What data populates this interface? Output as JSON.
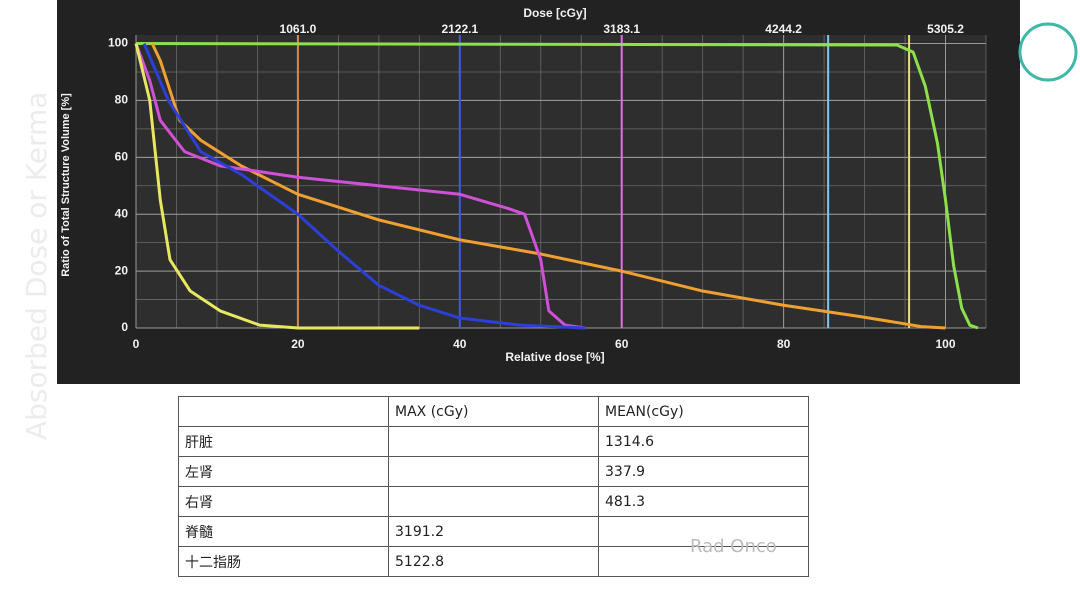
{
  "chart_data": {
    "type": "line",
    "title": "Dose [cGy]",
    "xlabel": "Relative dose [%]",
    "ylabel": "Ratio of Total Structure Volume [%]",
    "xlim": [
      0,
      105
    ],
    "ylim": [
      0,
      103
    ],
    "xticks": [
      0,
      20,
      40,
      60,
      80,
      100
    ],
    "yticks": [
      0,
      20,
      40,
      60,
      80,
      100
    ],
    "x2ticks": [
      {
        "value": 20,
        "label": "1061.0"
      },
      {
        "value": 40,
        "label": "2122.1"
      },
      {
        "value": 60,
        "label": "3183.1"
      },
      {
        "value": 80,
        "label": "4244.2"
      },
      {
        "value": 100,
        "label": "5305.2"
      }
    ],
    "grid": true,
    "reference_lines": [
      {
        "x": 20,
        "color": "#d98a4e"
      },
      {
        "x": 40,
        "color": "#3d5be0"
      },
      {
        "x": 60,
        "color": "#e070e8"
      },
      {
        "x": 85.5,
        "color": "#7ec8f0"
      },
      {
        "x": 95.5,
        "color": "#e8e070"
      }
    ],
    "series": [
      {
        "color": "#8ee04a",
        "x": [
          0,
          94,
          96,
          97.5,
          99,
          100,
          101,
          102,
          103,
          104
        ],
        "values": [
          100,
          99.5,
          97,
          85,
          65,
          45,
          22,
          7,
          1,
          0
        ]
      },
      {
        "color": "#f0a030",
        "x": [
          2,
          3,
          5.4,
          8,
          13,
          20,
          30,
          40,
          50,
          60,
          70,
          80,
          89.5,
          97,
          100
        ],
        "values": [
          100,
          94,
          73,
          66,
          57,
          47,
          38,
          31,
          26,
          20,
          13,
          8,
          4,
          0.5,
          0
        ]
      },
      {
        "color": "#d050d8",
        "x": [
          0,
          1.7,
          3,
          6,
          10.4,
          20,
          30,
          40,
          46,
          48,
          50,
          51,
          53,
          55.5
        ],
        "values": [
          100,
          87,
          73,
          62,
          57,
          53,
          50,
          47,
          42,
          40,
          24,
          6,
          1,
          0
        ]
      },
      {
        "color": "#2c3fd8",
        "x": [
          1,
          4,
          8,
          13,
          20,
          25,
          30,
          35,
          40,
          47.5,
          55.5
        ],
        "values": [
          100,
          80,
          62,
          54,
          40,
          27,
          15,
          8,
          3.5,
          1,
          0
        ]
      },
      {
        "color": "#e8e860",
        "x": [
          0,
          1.7,
          3,
          4.2,
          6.7,
          10.4,
          15.3,
          20,
          35
        ],
        "values": [
          100,
          80,
          45,
          24,
          13,
          6,
          1,
          0,
          0
        ]
      }
    ]
  },
  "table": {
    "header": [
      null,
      "MAX (cGy)",
      "MEAN(cGy)"
    ],
    "rows": [
      [
        "肝脏",
        null,
        "1314.6"
      ],
      [
        "左肾",
        null,
        "337.9"
      ],
      [
        "右肾",
        null,
        "481.3"
      ],
      [
        "脊髓",
        "3191.2",
        null
      ],
      [
        "十二指肠",
        "5122.8",
        null
      ]
    ]
  },
  "watermarks": [
    "Absorbed Dose or Kerma",
    "Rad Onco"
  ]
}
